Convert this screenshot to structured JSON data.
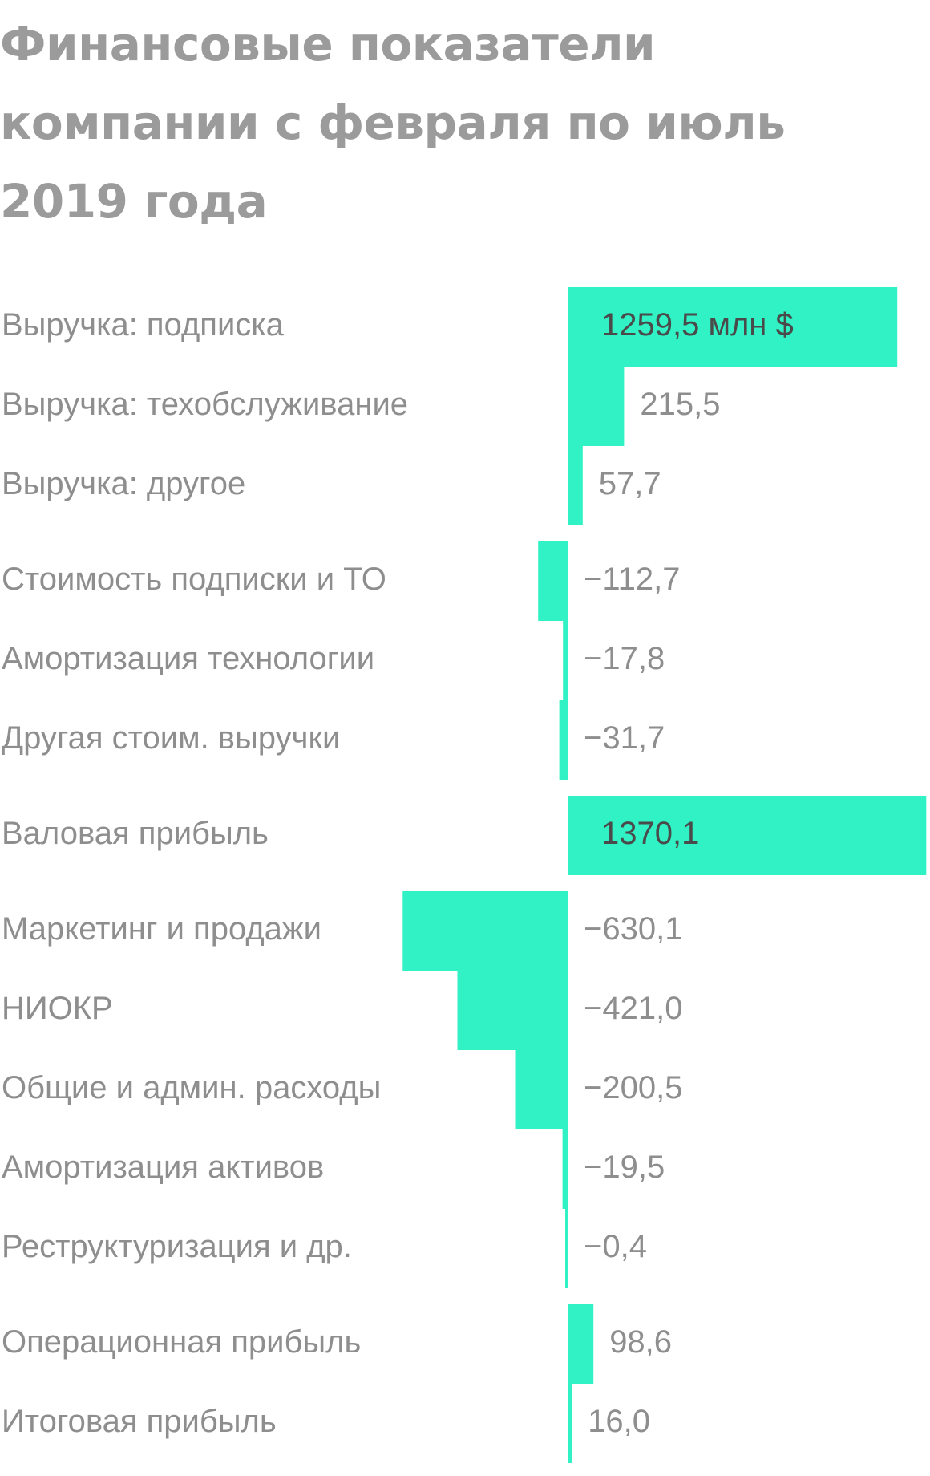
{
  "title": "Финансовые показатели компании с февраля по июль 2019 года",
  "colors": {
    "bar": "#30f2c5",
    "title": "#9b9b9b",
    "label": "#8e8e8e",
    "value_inside": "#4a4a4a",
    "background": "#ffffff"
  },
  "chart_data": {
    "type": "bar",
    "orientation": "horizontal",
    "title": "Финансовые показатели компании с февраля по июль 2019 года",
    "unit": "млн $",
    "categories": [
      "Выручка: подписка",
      "Выручка: техобслуживание",
      "Выручка: другое",
      "Стоимость подписки и ТО",
      "Амортизация технологии",
      "Другая стоим. выручки",
      "Валовая прибыль",
      "Маркетинг и продажи",
      "НИОКР",
      "Общие и админ. расходы",
      "Амортизация активов",
      "Реструктуризация и др.",
      "Операционная прибыль",
      "Итоговая прибыль"
    ],
    "values": [
      1259.5,
      215.5,
      57.7,
      -112.7,
      -17.8,
      -31.7,
      1370.1,
      -630.1,
      -421.0,
      -200.5,
      -19.5,
      -0.4,
      98.6,
      16.0
    ],
    "value_labels": [
      "1259,5 млн $",
      "215,5",
      "57,7",
      "−112,7",
      "−17,8",
      "−31,7",
      "1370,1",
      "−630,1",
      "−421,0",
      "−200,5",
      "−19,5",
      "−0,4",
      "98,6",
      "16,0"
    ],
    "groups": [
      [
        0,
        1,
        2
      ],
      [
        3,
        4,
        5
      ],
      [
        6
      ],
      [
        7,
        8,
        9,
        10,
        11
      ],
      [
        12,
        13
      ]
    ],
    "xlabel": "",
    "ylabel": "",
    "xlim": [
      -630.1,
      1370.1
    ],
    "grid": false,
    "legend": null
  }
}
